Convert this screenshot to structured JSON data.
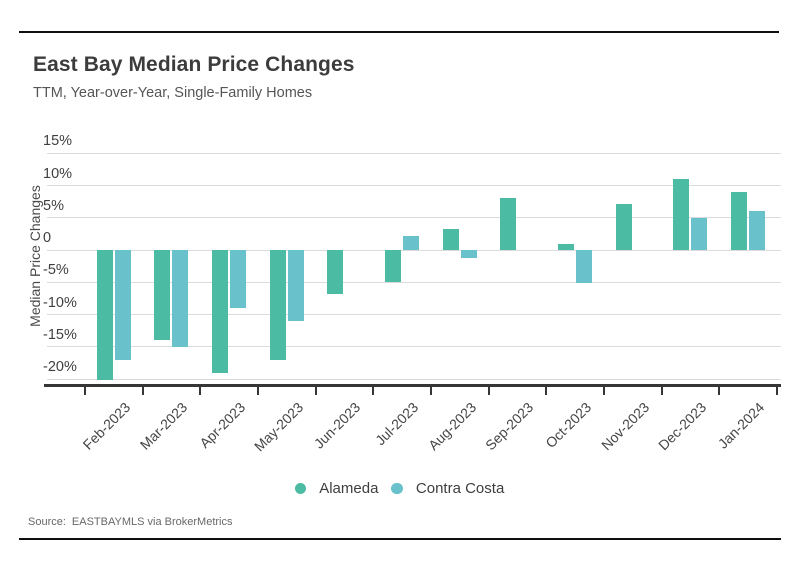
{
  "header": {
    "title": "East Bay Median Price Changes",
    "subtitle": "TTM, Year-over-Year, Single-Family Homes"
  },
  "chart_data": {
    "type": "bar",
    "title": "East Bay Median Price Changes",
    "subtitle": "TTM, Year-over-Year, Single-Family Homes",
    "categories": [
      "Feb-2023",
      "Mar-2023",
      "Apr-2023",
      "May-2023",
      "Jun-2023",
      "Jul-2023",
      "Aug-2023",
      "Sep-2023",
      "Oct-2023",
      "Nov-2023",
      "Dec-2023",
      "Jan-2024"
    ],
    "series": [
      {
        "name": "Alameda",
        "color": "#4cbba4",
        "values": [
          -20.1,
          -14.0,
          -19.1,
          -17.0,
          -6.8,
          -5.0,
          3.2,
          8.1,
          1.0,
          7.1,
          11.0,
          9.0
        ]
      },
      {
        "name": "Contra Costa",
        "color": "#69c1cb",
        "values": [
          -17.0,
          -15.1,
          -9.0,
          -11.0,
          null,
          2.1,
          -1.3,
          null,
          -5.1,
          null,
          5.0,
          6.0
        ]
      }
    ],
    "xlabel": "",
    "ylabel": "Median Price Changes",
    "y_ticks": [
      {
        "label": "15%",
        "value": 15
      },
      {
        "label": "10%",
        "value": 10
      },
      {
        "label": "5%",
        "value": 5
      },
      {
        "label": "0",
        "value": 0
      },
      {
        "label": "-5%",
        "value": -5
      },
      {
        "label": "-10%",
        "value": -10
      },
      {
        "label": "-15%",
        "value": -15
      },
      {
        "label": "-20%",
        "value": -20
      }
    ],
    "ylim": [
      -21,
      16
    ],
    "grid": true,
    "legend_position": "bottom"
  },
  "footer": {
    "source_label": "Source:",
    "source_text": "EASTBAYMLS via BrokerMetrics"
  }
}
